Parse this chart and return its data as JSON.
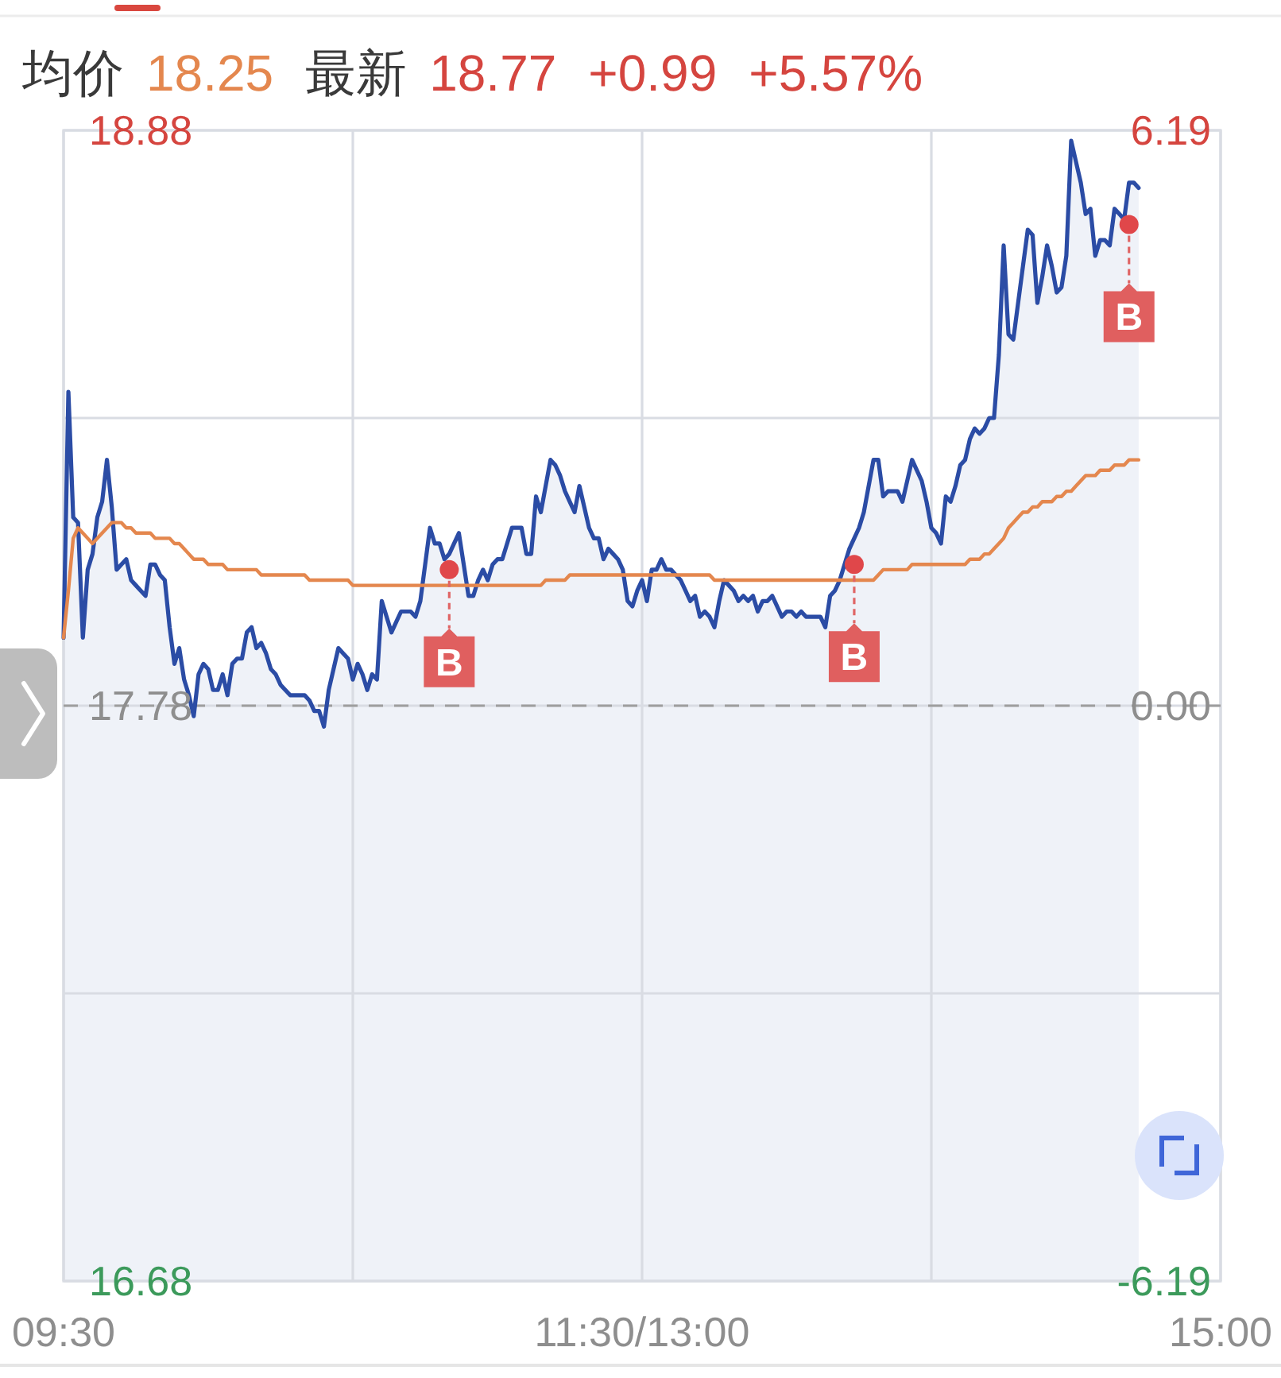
{
  "chart_data": {
    "type": "area",
    "annotations": [
      "均价",
      "18.25",
      "最新",
      "18.77",
      "+0.99",
      "+5.57%"
    ],
    "categories": [
      "09:30",
      null,
      null,
      null,
      null,
      null,
      null,
      null,
      null,
      null,
      null,
      null,
      null,
      null,
      null,
      null,
      null,
      null,
      null,
      null,
      null,
      null,
      null,
      null,
      null,
      null,
      null,
      null,
      null,
      null,
      null,
      null,
      null,
      null,
      null,
      null,
      null,
      null,
      null,
      null,
      null,
      null,
      null,
      null,
      null,
      null,
      null,
      null,
      null,
      null,
      null,
      null,
      null,
      null,
      null,
      null,
      null,
      null,
      null,
      null,
      null,
      null,
      null,
      null,
      null,
      null,
      null,
      null,
      null,
      null,
      null,
      null,
      null,
      null,
      null,
      null,
      null,
      null,
      null,
      null,
      null,
      null,
      null,
      null,
      null,
      null,
      null,
      null,
      null,
      null,
      null,
      null,
      null,
      null,
      null,
      null,
      null,
      null,
      null,
      null,
      null,
      null,
      null,
      null,
      null,
      null,
      null,
      null,
      null,
      null,
      null,
      null,
      null,
      null,
      null,
      null,
      null,
      null,
      null,
      null,
      "11:30/13:00",
      null,
      null,
      null,
      null,
      null,
      null,
      null,
      null,
      null,
      null,
      null,
      null,
      null,
      null,
      null,
      null,
      null,
      null,
      null,
      null,
      null,
      null,
      null,
      null,
      null,
      null,
      null,
      null,
      null,
      null,
      null,
      null,
      null,
      null,
      null,
      null,
      null,
      null,
      null,
      null,
      null,
      null,
      null,
      null,
      null,
      null,
      null,
      null,
      null,
      null,
      null,
      null,
      null,
      null,
      null,
      null,
      null,
      null,
      null,
      null,
      null,
      null,
      null,
      null,
      null,
      null,
      null,
      null,
      null,
      null,
      null,
      null,
      null,
      null,
      null,
      null,
      null,
      null,
      null,
      null,
      null,
      null,
      null,
      null,
      null,
      null,
      null,
      null,
      null,
      null,
      null,
      null,
      null,
      null,
      null,
      null,
      null,
      null,
      null,
      null,
      null,
      null,
      null,
      null,
      null,
      null,
      null,
      null,
      null,
      null,
      null,
      null,
      null,
      null,
      null,
      null,
      null,
      null,
      null,
      "15:00"
    ],
    "ylim": [
      16.68,
      18.88
    ],
    "yticks": [
      16.68,
      {
        "value": 17.23,
        "label": null
      },
      17.78,
      {
        "value": 18.33,
        "label": null
      },
      18.88
    ],
    "y2lim": [
      -6.19,
      6.19
    ],
    "y2ticks": [
      -6.19,
      {
        "value": 0,
        "label": "0.00"
      },
      6.19
    ],
    "grid": true,
    "ref_lines": [
      {
        "axis": "y",
        "value": 17.78,
        "color": "#9e9e9e",
        "line_style": "dashed"
      }
    ],
    "series": [
      {
        "color": "#2b4ca5",
        "values": [
          17.91,
          18.38,
          18.14,
          18.13,
          17.91,
          18.04,
          18.07,
          18.14,
          18.17,
          18.25,
          18.16,
          18.04,
          18.05,
          18.06,
          18.02,
          18.01,
          18.0,
          17.99,
          18.05,
          18.05,
          18.03,
          18.02,
          17.93,
          17.86,
          17.89,
          17.83,
          17.8,
          17.76,
          17.84,
          17.86,
          17.85,
          17.81,
          17.81,
          17.84,
          17.8,
          17.86,
          17.87,
          17.87,
          17.92,
          17.93,
          17.89,
          17.9,
          17.88,
          17.85,
          17.84,
          17.82,
          17.81,
          17.8,
          17.8,
          17.8,
          17.8,
          17.79,
          17.77,
          17.77,
          17.74,
          17.81,
          17.85,
          17.89,
          17.88,
          17.87,
          17.83,
          17.86,
          17.84,
          17.81,
          17.84,
          17.83,
          17.98,
          17.95,
          17.92,
          17.94,
          17.96,
          17.96,
          17.96,
          17.95,
          17.98,
          18.05,
          18.12,
          18.09,
          18.09,
          18.06,
          18.07,
          18.09,
          18.11,
          18.05,
          17.99,
          17.99,
          18.02,
          18.04,
          18.02,
          18.05,
          18.06,
          18.06,
          18.09,
          18.12,
          18.12,
          18.12,
          18.07,
          18.07,
          18.18,
          18.15,
          18.2,
          18.25,
          18.24,
          18.22,
          18.19,
          18.17,
          18.15,
          18.2,
          18.16,
          18.12,
          18.1,
          18.1,
          18.06,
          18.08,
          18.07,
          18.06,
          18.04,
          17.98,
          17.97,
          18.0,
          18.02,
          17.98,
          18.04,
          18.04,
          18.06,
          18.04,
          18.04,
          18.03,
          18.02,
          18.0,
          17.98,
          17.99,
          17.95,
          17.96,
          17.95,
          17.93,
          17.98,
          18.02,
          18.01,
          18.0,
          17.98,
          17.99,
          17.98,
          17.99,
          17.96,
          17.98,
          17.98,
          17.99,
          17.97,
          17.95,
          17.96,
          17.96,
          17.95,
          17.96,
          17.95,
          17.95,
          17.95,
          17.95,
          17.93,
          17.99,
          18.0,
          18.02,
          18.05,
          18.08,
          18.1,
          18.12,
          18.15,
          18.2,
          18.25,
          18.25,
          18.18,
          18.19,
          18.19,
          18.19,
          18.17,
          18.21,
          18.25,
          18.23,
          18.21,
          18.17,
          18.12,
          18.11,
          18.09,
          18.18,
          18.17,
          18.2,
          18.24,
          18.25,
          18.29,
          18.31,
          18.3,
          18.31,
          18.33,
          18.33,
          18.45,
          18.66,
          18.49,
          18.48,
          18.55,
          18.62,
          18.69,
          18.68,
          18.55,
          18.6,
          18.66,
          18.62,
          18.57,
          18.58,
          18.64,
          18.86,
          18.82,
          18.78,
          18.72,
          18.73,
          18.64,
          18.67,
          18.67,
          18.66,
          18.73,
          18.72,
          18.71,
          18.78,
          18.78,
          18.77,
          null,
          null,
          null,
          null,
          null,
          null,
          null,
          null,
          null,
          null,
          null,
          null,
          null,
          null,
          null,
          null,
          null
        ]
      },
      {
        "type": "line",
        "color": "#e4874e",
        "values": [
          17.91,
          18.0,
          18.1,
          18.12,
          18.11,
          18.1,
          18.09,
          18.1,
          18.11,
          18.12,
          18.13,
          18.13,
          18.13,
          18.12,
          18.12,
          18.11,
          18.11,
          18.11,
          18.11,
          18.1,
          18.1,
          18.1,
          18.1,
          18.09,
          18.09,
          18.08,
          18.07,
          18.06,
          18.06,
          18.06,
          18.05,
          18.05,
          18.05,
          18.05,
          18.04,
          18.04,
          18.04,
          18.04,
          18.04,
          18.04,
          18.04,
          18.03,
          18.03,
          18.03,
          18.03,
          18.03,
          18.03,
          18.03,
          18.03,
          18.03,
          18.03,
          18.02,
          18.02,
          18.02,
          18.02,
          18.02,
          18.02,
          18.02,
          18.02,
          18.02,
          18.01,
          18.01,
          18.01,
          18.01,
          18.01,
          18.01,
          18.01,
          18.01,
          18.01,
          18.01,
          18.01,
          18.01,
          18.01,
          18.01,
          18.01,
          18.01,
          18.01,
          18.01,
          18.01,
          18.01,
          18.01,
          18.01,
          18.01,
          18.01,
          18.01,
          18.01,
          18.01,
          18.01,
          18.01,
          18.01,
          18.01,
          18.01,
          18.01,
          18.01,
          18.01,
          18.01,
          18.01,
          18.01,
          18.01,
          18.01,
          18.02,
          18.02,
          18.02,
          18.02,
          18.02,
          18.03,
          18.03,
          18.03,
          18.03,
          18.03,
          18.03,
          18.03,
          18.03,
          18.03,
          18.03,
          18.03,
          18.03,
          18.03,
          18.03,
          18.03,
          18.03,
          18.03,
          18.03,
          18.03,
          18.03,
          18.03,
          18.03,
          18.03,
          18.03,
          18.03,
          18.03,
          18.03,
          18.03,
          18.03,
          18.03,
          18.02,
          18.02,
          18.02,
          18.02,
          18.02,
          18.02,
          18.02,
          18.02,
          18.02,
          18.02,
          18.02,
          18.02,
          18.02,
          18.02,
          18.02,
          18.02,
          18.02,
          18.02,
          18.02,
          18.02,
          18.02,
          18.02,
          18.02,
          18.02,
          18.02,
          18.02,
          18.02,
          18.02,
          18.02,
          18.02,
          18.02,
          18.02,
          18.02,
          18.02,
          18.03,
          18.04,
          18.04,
          18.04,
          18.04,
          18.04,
          18.04,
          18.05,
          18.05,
          18.05,
          18.05,
          18.05,
          18.05,
          18.05,
          18.05,
          18.05,
          18.05,
          18.05,
          18.05,
          18.06,
          18.06,
          18.06,
          18.07,
          18.07,
          18.08,
          18.09,
          18.1,
          18.12,
          18.13,
          18.14,
          18.15,
          18.15,
          18.16,
          18.16,
          18.17,
          18.17,
          18.17,
          18.18,
          18.18,
          18.19,
          18.19,
          18.2,
          18.21,
          18.22,
          18.22,
          18.22,
          18.23,
          18.23,
          18.23,
          18.24,
          18.24,
          18.24,
          18.25,
          18.25,
          18.25,
          null,
          null,
          null,
          null,
          null,
          null,
          null,
          null,
          null,
          null,
          null,
          null,
          null,
          null,
          null,
          null,
          null
        ]
      },
      {
        "type": "scatter",
        "color": "#e0474a",
        "marker": "circle",
        "values": [
          null,
          null,
          null,
          null,
          null,
          null,
          null,
          null,
          null,
          null,
          null,
          null,
          null,
          null,
          null,
          null,
          null,
          null,
          null,
          null,
          null,
          null,
          null,
          null,
          null,
          null,
          null,
          null,
          null,
          null,
          null,
          null,
          null,
          null,
          null,
          null,
          null,
          null,
          null,
          null,
          null,
          null,
          null,
          null,
          null,
          null,
          null,
          null,
          null,
          null,
          null,
          null,
          null,
          null,
          null,
          null,
          null,
          null,
          null,
          null,
          null,
          null,
          null,
          null,
          null,
          null,
          null,
          null,
          null,
          null,
          null,
          null,
          null,
          null,
          null,
          null,
          null,
          null,
          null,
          null,
          18.04,
          null,
          null,
          null,
          null,
          null,
          null,
          null,
          null,
          null,
          null,
          null,
          null,
          null,
          null,
          null,
          null,
          null,
          null,
          null,
          null,
          null,
          null,
          null,
          null,
          null,
          null,
          null,
          null,
          null,
          null,
          null,
          null,
          null,
          null,
          null,
          null,
          null,
          null,
          null,
          null,
          null,
          null,
          null,
          null,
          null,
          null,
          null,
          null,
          null,
          null,
          null,
          null,
          null,
          null,
          null,
          null,
          null,
          null,
          null,
          null,
          null,
          null,
          null,
          null,
          null,
          null,
          null,
          null,
          null,
          null,
          null,
          null,
          null,
          null,
          null,
          null,
          null,
          null,
          null,
          null,
          null,
          null,
          null,
          18.05,
          null,
          null,
          null,
          null,
          null,
          null,
          null,
          null,
          null,
          null,
          null,
          null,
          null,
          null,
          null,
          null,
          null,
          null,
          null,
          null,
          null,
          null,
          null,
          null,
          null,
          null,
          null,
          null,
          null,
          null,
          null,
          null,
          null,
          null,
          null,
          null,
          null,
          null,
          null,
          null,
          null,
          null,
          null,
          null,
          null,
          null,
          null,
          null,
          null,
          null,
          null,
          null,
          null,
          null,
          null,
          null,
          18.7,
          null,
          null,
          null,
          null,
          null,
          null,
          null,
          null,
          null,
          null,
          null,
          null,
          null,
          null,
          null,
          null,
          null,
          null,
          null
        ],
        "value_labels": [
          null,
          null,
          null,
          null,
          null,
          null,
          null,
          null,
          null,
          null,
          null,
          null,
          null,
          null,
          null,
          null,
          null,
          null,
          null,
          null,
          null,
          null,
          null,
          null,
          null,
          null,
          null,
          null,
          null,
          null,
          null,
          null,
          null,
          null,
          null,
          null,
          null,
          null,
          null,
          null,
          null,
          null,
          null,
          null,
          null,
          null,
          null,
          null,
          null,
          null,
          null,
          null,
          null,
          null,
          null,
          null,
          null,
          null,
          null,
          null,
          null,
          null,
          null,
          null,
          null,
          null,
          null,
          null,
          null,
          null,
          null,
          null,
          null,
          null,
          null,
          null,
          null,
          null,
          null,
          null,
          "B",
          null,
          null,
          null,
          null,
          null,
          null,
          null,
          null,
          null,
          null,
          null,
          null,
          null,
          null,
          null,
          null,
          null,
          null,
          null,
          null,
          null,
          null,
          null,
          null,
          null,
          null,
          null,
          null,
          null,
          null,
          null,
          null,
          null,
          null,
          null,
          null,
          null,
          null,
          null,
          null,
          null,
          null,
          null,
          null,
          null,
          null,
          null,
          null,
          null,
          null,
          null,
          null,
          null,
          null,
          null,
          null,
          null,
          null,
          null,
          null,
          null,
          null,
          null,
          null,
          null,
          null,
          null,
          null,
          null,
          null,
          null,
          null,
          null,
          null,
          null,
          null,
          null,
          null,
          null,
          null,
          null,
          null,
          null,
          "B",
          null,
          null,
          null,
          null,
          null,
          null,
          null,
          null,
          null,
          null,
          null,
          null,
          null,
          null,
          null,
          null,
          null,
          null,
          null,
          null,
          null,
          null,
          null,
          null,
          null,
          null,
          null,
          null,
          null,
          null,
          null,
          null,
          null,
          null,
          null,
          null,
          null,
          null,
          null,
          null,
          null,
          null,
          null,
          null,
          null,
          null,
          null,
          null,
          null,
          null,
          null,
          null,
          null,
          null,
          null,
          null,
          "B",
          null,
          null,
          null,
          null,
          null,
          null,
          null,
          null,
          null,
          null,
          null,
          null,
          null,
          null,
          null,
          null,
          null,
          null,
          null
        ]
      }
    ]
  }
}
